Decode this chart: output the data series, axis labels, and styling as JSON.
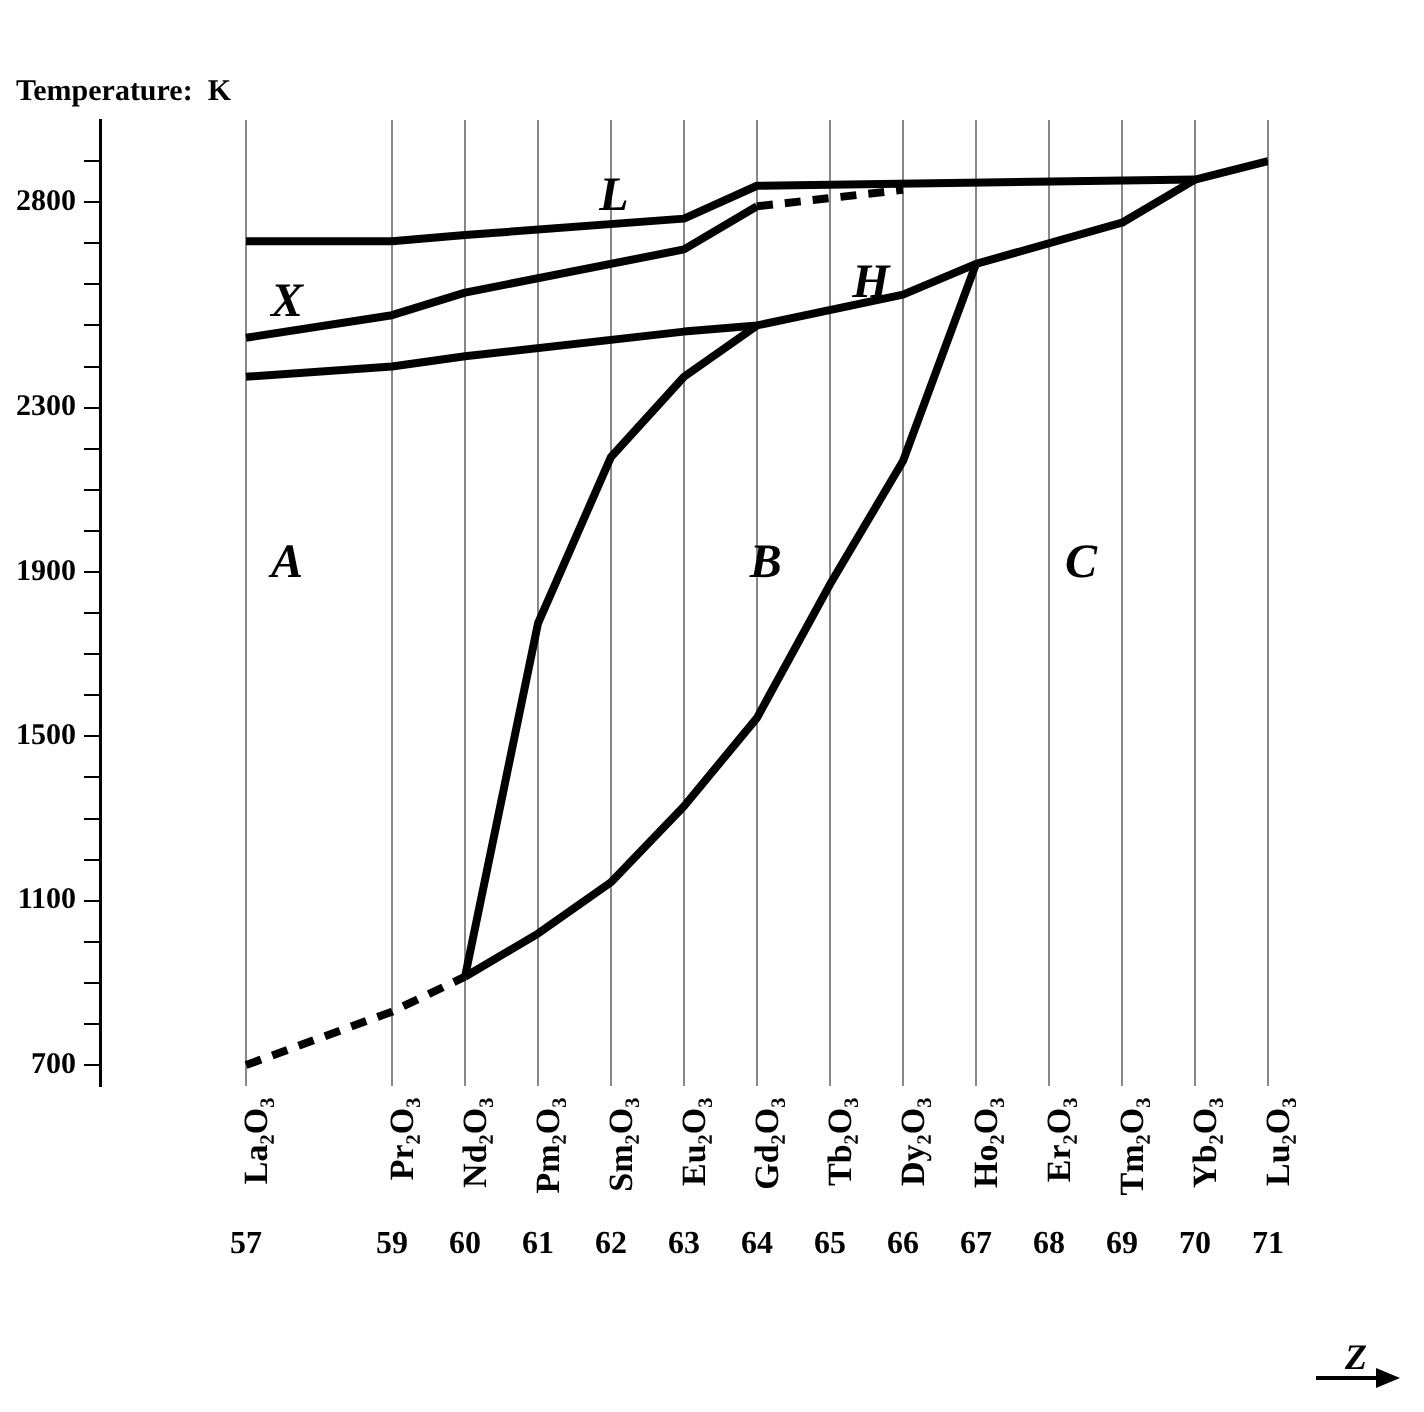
{
  "chart_data": {
    "type": "line",
    "ylabel": "Temperature:  K",
    "xlabel": "Z",
    "xlim": [
      55,
      71
    ],
    "ylim": [
      650,
      3000
    ],
    "xticks": [
      57,
      59,
      60,
      61,
      62,
      63,
      64,
      65,
      66,
      67,
      68,
      69,
      70,
      71
    ],
    "yticks": [
      700,
      {
        "value": 800,
        "label": null
      },
      {
        "value": 900,
        "label": null
      },
      {
        "value": 1000,
        "label": null
      },
      1100,
      {
        "value": 1200,
        "label": null
      },
      {
        "value": 1300,
        "label": null
      },
      {
        "value": 1400,
        "label": null
      },
      1500,
      {
        "value": 1600,
        "label": null
      },
      {
        "value": 1700,
        "label": null
      },
      {
        "value": 1800,
        "label": null
      },
      1900,
      {
        "value": 2000,
        "label": null
      },
      {
        "value": 2100,
        "label": null
      },
      {
        "value": 2200,
        "label": null
      },
      2300,
      {
        "value": 2400,
        "label": null
      },
      {
        "value": 2500,
        "label": null
      },
      {
        "value": 2600,
        "label": null
      },
      {
        "value": 2700,
        "label": null
      },
      2800,
      {
        "value": 2900,
        "label": null
      }
    ],
    "grid": "x",
    "marker": "none",
    "legend": false,
    "series": [
      {
        "color": "#000000",
        "line_style": "solid",
        "x": [
          57,
          59,
          60,
          63,
          64,
          70,
          71
        ],
        "values": [
          2705,
          2705,
          2720,
          2760,
          2840,
          2855,
          2900
        ]
      },
      {
        "color": "#000000",
        "line_style": "solid",
        "x": [
          57,
          59,
          60,
          63,
          64
        ],
        "values": [
          2470,
          2525,
          2580,
          2685,
          2790
        ]
      },
      {
        "color": "#000000",
        "line_style": "dashed",
        "x": [
          64,
          66
        ],
        "values": [
          2790,
          2830
        ]
      },
      {
        "color": "#000000",
        "line_style": "solid",
        "x": [
          57,
          59,
          60,
          63,
          64,
          66,
          67,
          69,
          70
        ],
        "values": [
          2375,
          2400,
          2425,
          2485,
          2500,
          2575,
          2650,
          2750,
          2855
        ]
      },
      {
        "color": "#000000",
        "line_style": "solid",
        "x": [
          60,
          61,
          62,
          63,
          64
        ],
        "values": [
          915,
          1775,
          2180,
          2375,
          2500
        ]
      },
      {
        "color": "#000000",
        "line_style": "solid",
        "x": [
          60,
          61,
          62,
          63,
          64,
          65,
          66,
          67
        ],
        "values": [
          915,
          1020,
          1145,
          1330,
          1545,
          1870,
          2170,
          2650
        ]
      },
      {
        "color": "#000000",
        "line_style": "dashed",
        "x": [
          57,
          59,
          60
        ],
        "values": [
          700,
          830,
          915
        ]
      }
    ],
    "annotations": [
      "L",
      "X",
      "H",
      "A",
      "B",
      "C",
      "La₂O₃",
      "Pr₂O₃",
      "Nd₂O₃",
      "Pm₂O₃",
      "Sm₂O₃",
      "Eu₂O₃",
      "Gd₂O₃",
      "Tb₂O₃",
      "Dy₂O₃",
      "Ho₂O₃",
      "Er₂O₃",
      "Tm₂O₃",
      "Yb₂O₃",
      "Lu₂O₃"
    ]
  }
}
